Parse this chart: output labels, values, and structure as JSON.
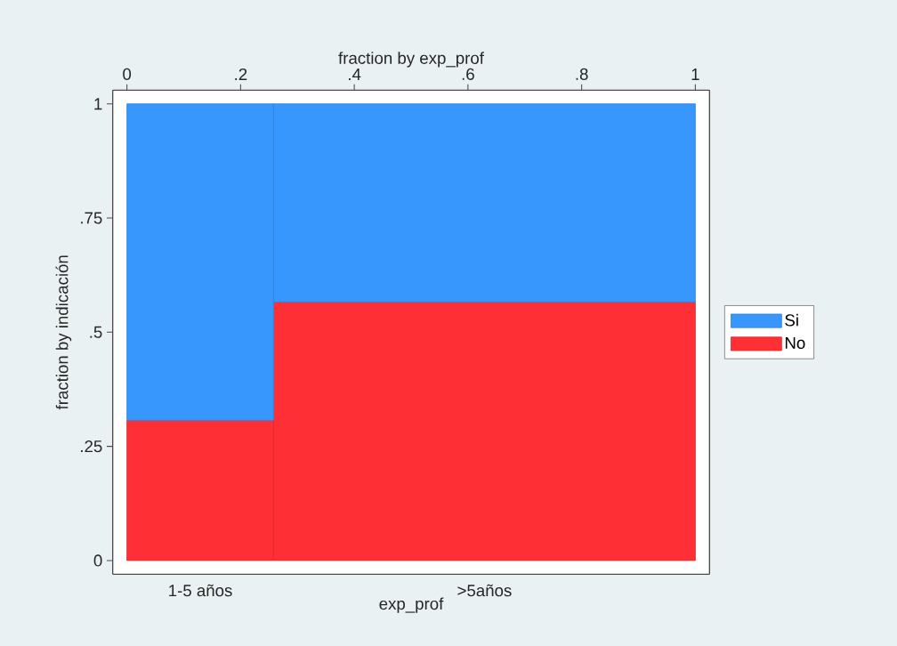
{
  "chart_data": {
    "type": "bar",
    "stacked": true,
    "xlabel": "exp_prof",
    "ylabel": "fraction by indicación",
    "x2label": "fraction by exp_prof",
    "annotations": [
      "1-5 años",
      ">5años"
    ],
    "x": [
      0.129,
      0.629
    ],
    "series": [
      {
        "name": "No",
        "color": "#fe3036",
        "values": [
          0.307,
          0.566
        ]
      },
      {
        "name": "Si",
        "color": "#3797fd",
        "values": [
          0.693,
          0.434
        ]
      }
    ],
    "ylim": [
      0,
      1
    ],
    "yticks": [
      0,
      {
        "value": 0.25,
        "label": ".25"
      },
      {
        "value": 0.5,
        "label": ".5"
      },
      {
        "value": 0.75,
        "label": ".75"
      },
      1
    ],
    "xlim": [
      0,
      1
    ],
    "xticks": [
      0,
      {
        "value": 0.2,
        "label": ".2"
      },
      {
        "value": 0.4,
        "label": ".4"
      },
      {
        "value": 0.6,
        "label": ".6"
      },
      {
        "value": 0.8,
        "label": ".8"
      },
      1
    ],
    "legend": "right",
    "grid": false
  }
}
